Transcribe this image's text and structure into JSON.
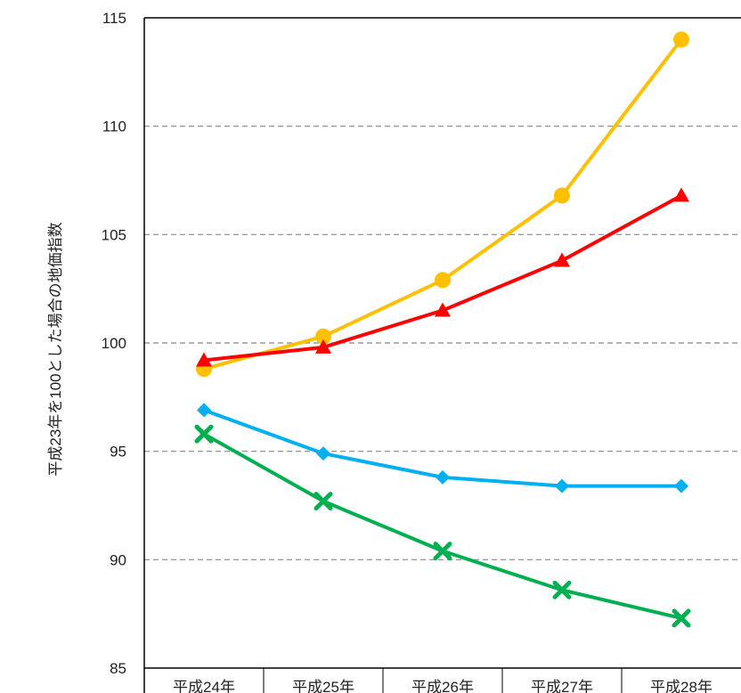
{
  "chart_data": {
    "type": "line",
    "title": "",
    "xlabel": "",
    "ylabel": "平成23年を100とした場合の地価指数",
    "categories": [
      "平成24年",
      "平成25年",
      "平成26年",
      "平成27年",
      "平成28年"
    ],
    "ylim": [
      85,
      115
    ],
    "yticks": [
      "85",
      "90",
      "95",
      "100",
      "105",
      "110",
      "115"
    ],
    "grid": true,
    "series": [
      {
        "values": [
          98.8,
          100.3,
          102.9,
          106.8,
          114.0
        ],
        "color": "#FFC000",
        "marker": "circle"
      },
      {
        "values": [
          99.2,
          99.8,
          101.5,
          103.8,
          106.8
        ],
        "color": "#FF0000",
        "marker": "triangle"
      },
      {
        "values": [
          96.9,
          94.9,
          93.8,
          93.4,
          93.4
        ],
        "color": "#00B0F0",
        "marker": "diamond"
      },
      {
        "values": [
          95.8,
          92.7,
          90.4,
          88.6,
          87.3
        ],
        "color": "#00B050",
        "marker": "cross"
      }
    ]
  }
}
